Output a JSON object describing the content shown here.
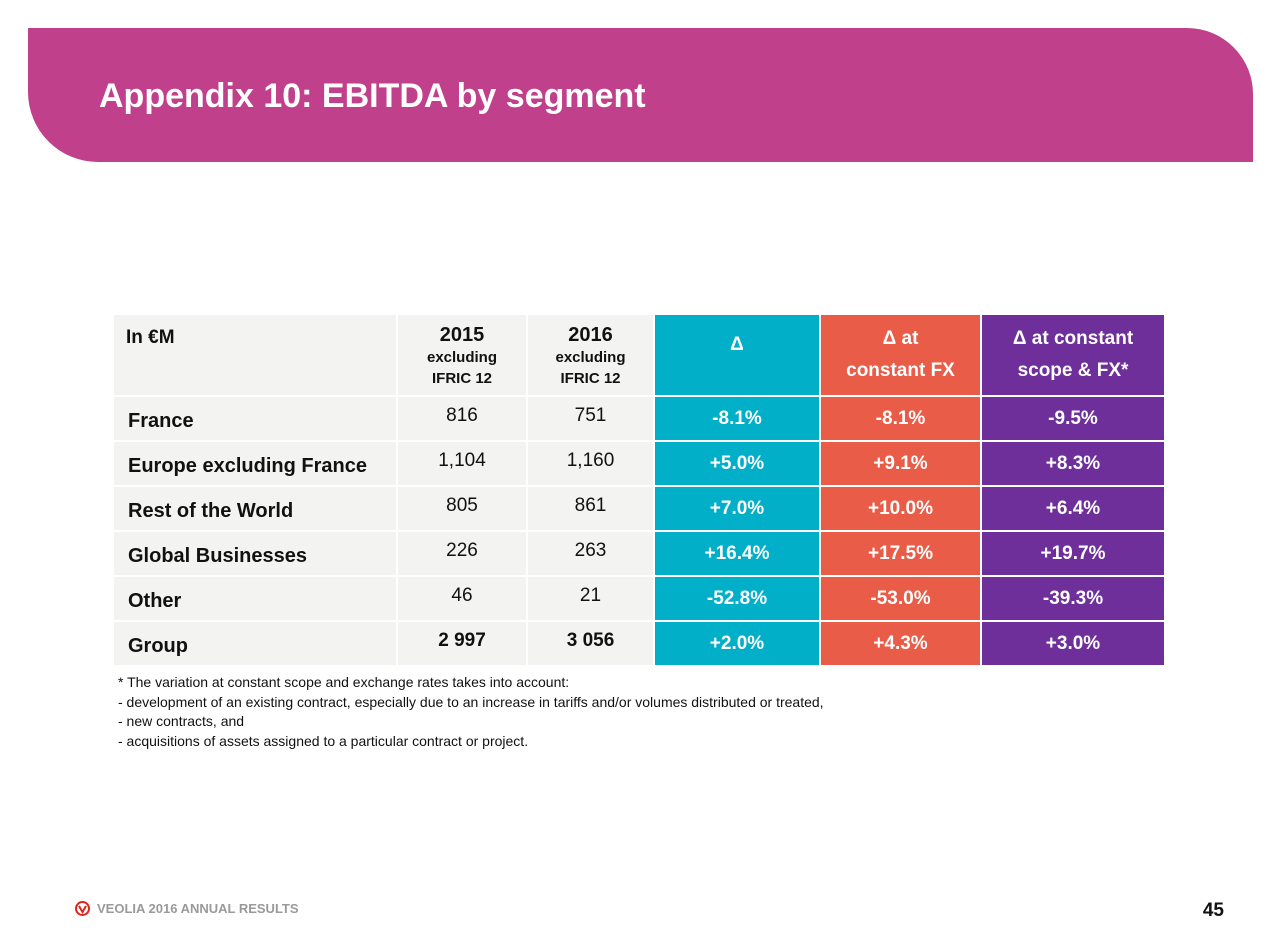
{
  "slide": {
    "title": "Appendix 10: EBITDA by segment",
    "page_number": "45"
  },
  "table": {
    "header": {
      "label": "In €M",
      "col_2015": {
        "year": "2015",
        "line1": "excluding",
        "line2": "IFRIC 12"
      },
      "col_2016": {
        "year": "2016",
        "line1": "excluding",
        "line2": "IFRIC 12"
      },
      "col_delta": "Δ",
      "col_fx": {
        "line1": "Δ at",
        "line2": "constant FX"
      },
      "col_scope": {
        "line1": "Δ at constant",
        "line2": "scope & FX*"
      }
    },
    "rows": [
      {
        "label": "France",
        "v2015": "816",
        "v2016": "751",
        "delta": "-8.1%",
        "fx": "-8.1%",
        "scope": "-9.5%"
      },
      {
        "label": "Europe excluding France",
        "v2015": "1,104",
        "v2016": "1,160",
        "delta": "+5.0%",
        "fx": "+9.1%",
        "scope": "+8.3%"
      },
      {
        "label": "Rest of the World",
        "v2015": "805",
        "v2016": "861",
        "delta": "+7.0%",
        "fx": "+10.0%",
        "scope": "+6.4%"
      },
      {
        "label": "Global Businesses",
        "v2015": "226",
        "v2016": "263",
        "delta": "+16.4%",
        "fx": "+17.5%",
        "scope": "+19.7%"
      },
      {
        "label": "Other",
        "v2015": "46",
        "v2016": "21",
        "delta": "-52.8%",
        "fx": "-53.0%",
        "scope": "-39.3%"
      },
      {
        "label": "Group",
        "v2015": "2 997",
        "v2016": "3 056",
        "delta": "+2.0%",
        "fx": "+4.3%",
        "scope": "+3.0%"
      }
    ]
  },
  "footnote": {
    "lines": [
      "* The variation at constant scope and exchange rates takes into account:",
      "- development of an existing contract, especially due to an increase in tariffs and/or volumes distributed or treated,",
      "- new contracts, and",
      "- acquisitions of assets assigned to a particular contract or project."
    ]
  },
  "footer": {
    "logo_icon": "veolia-logo-icon",
    "text": "VEOLIA 2016 ANNUAL RESULTS"
  },
  "colors": {
    "banner": "#c0408c",
    "delta": "#01afc8",
    "fx": "#e95c48",
    "scope": "#6e2f9a",
    "neutral_cell": "#f3f3f2",
    "logo": "#e2231a"
  }
}
